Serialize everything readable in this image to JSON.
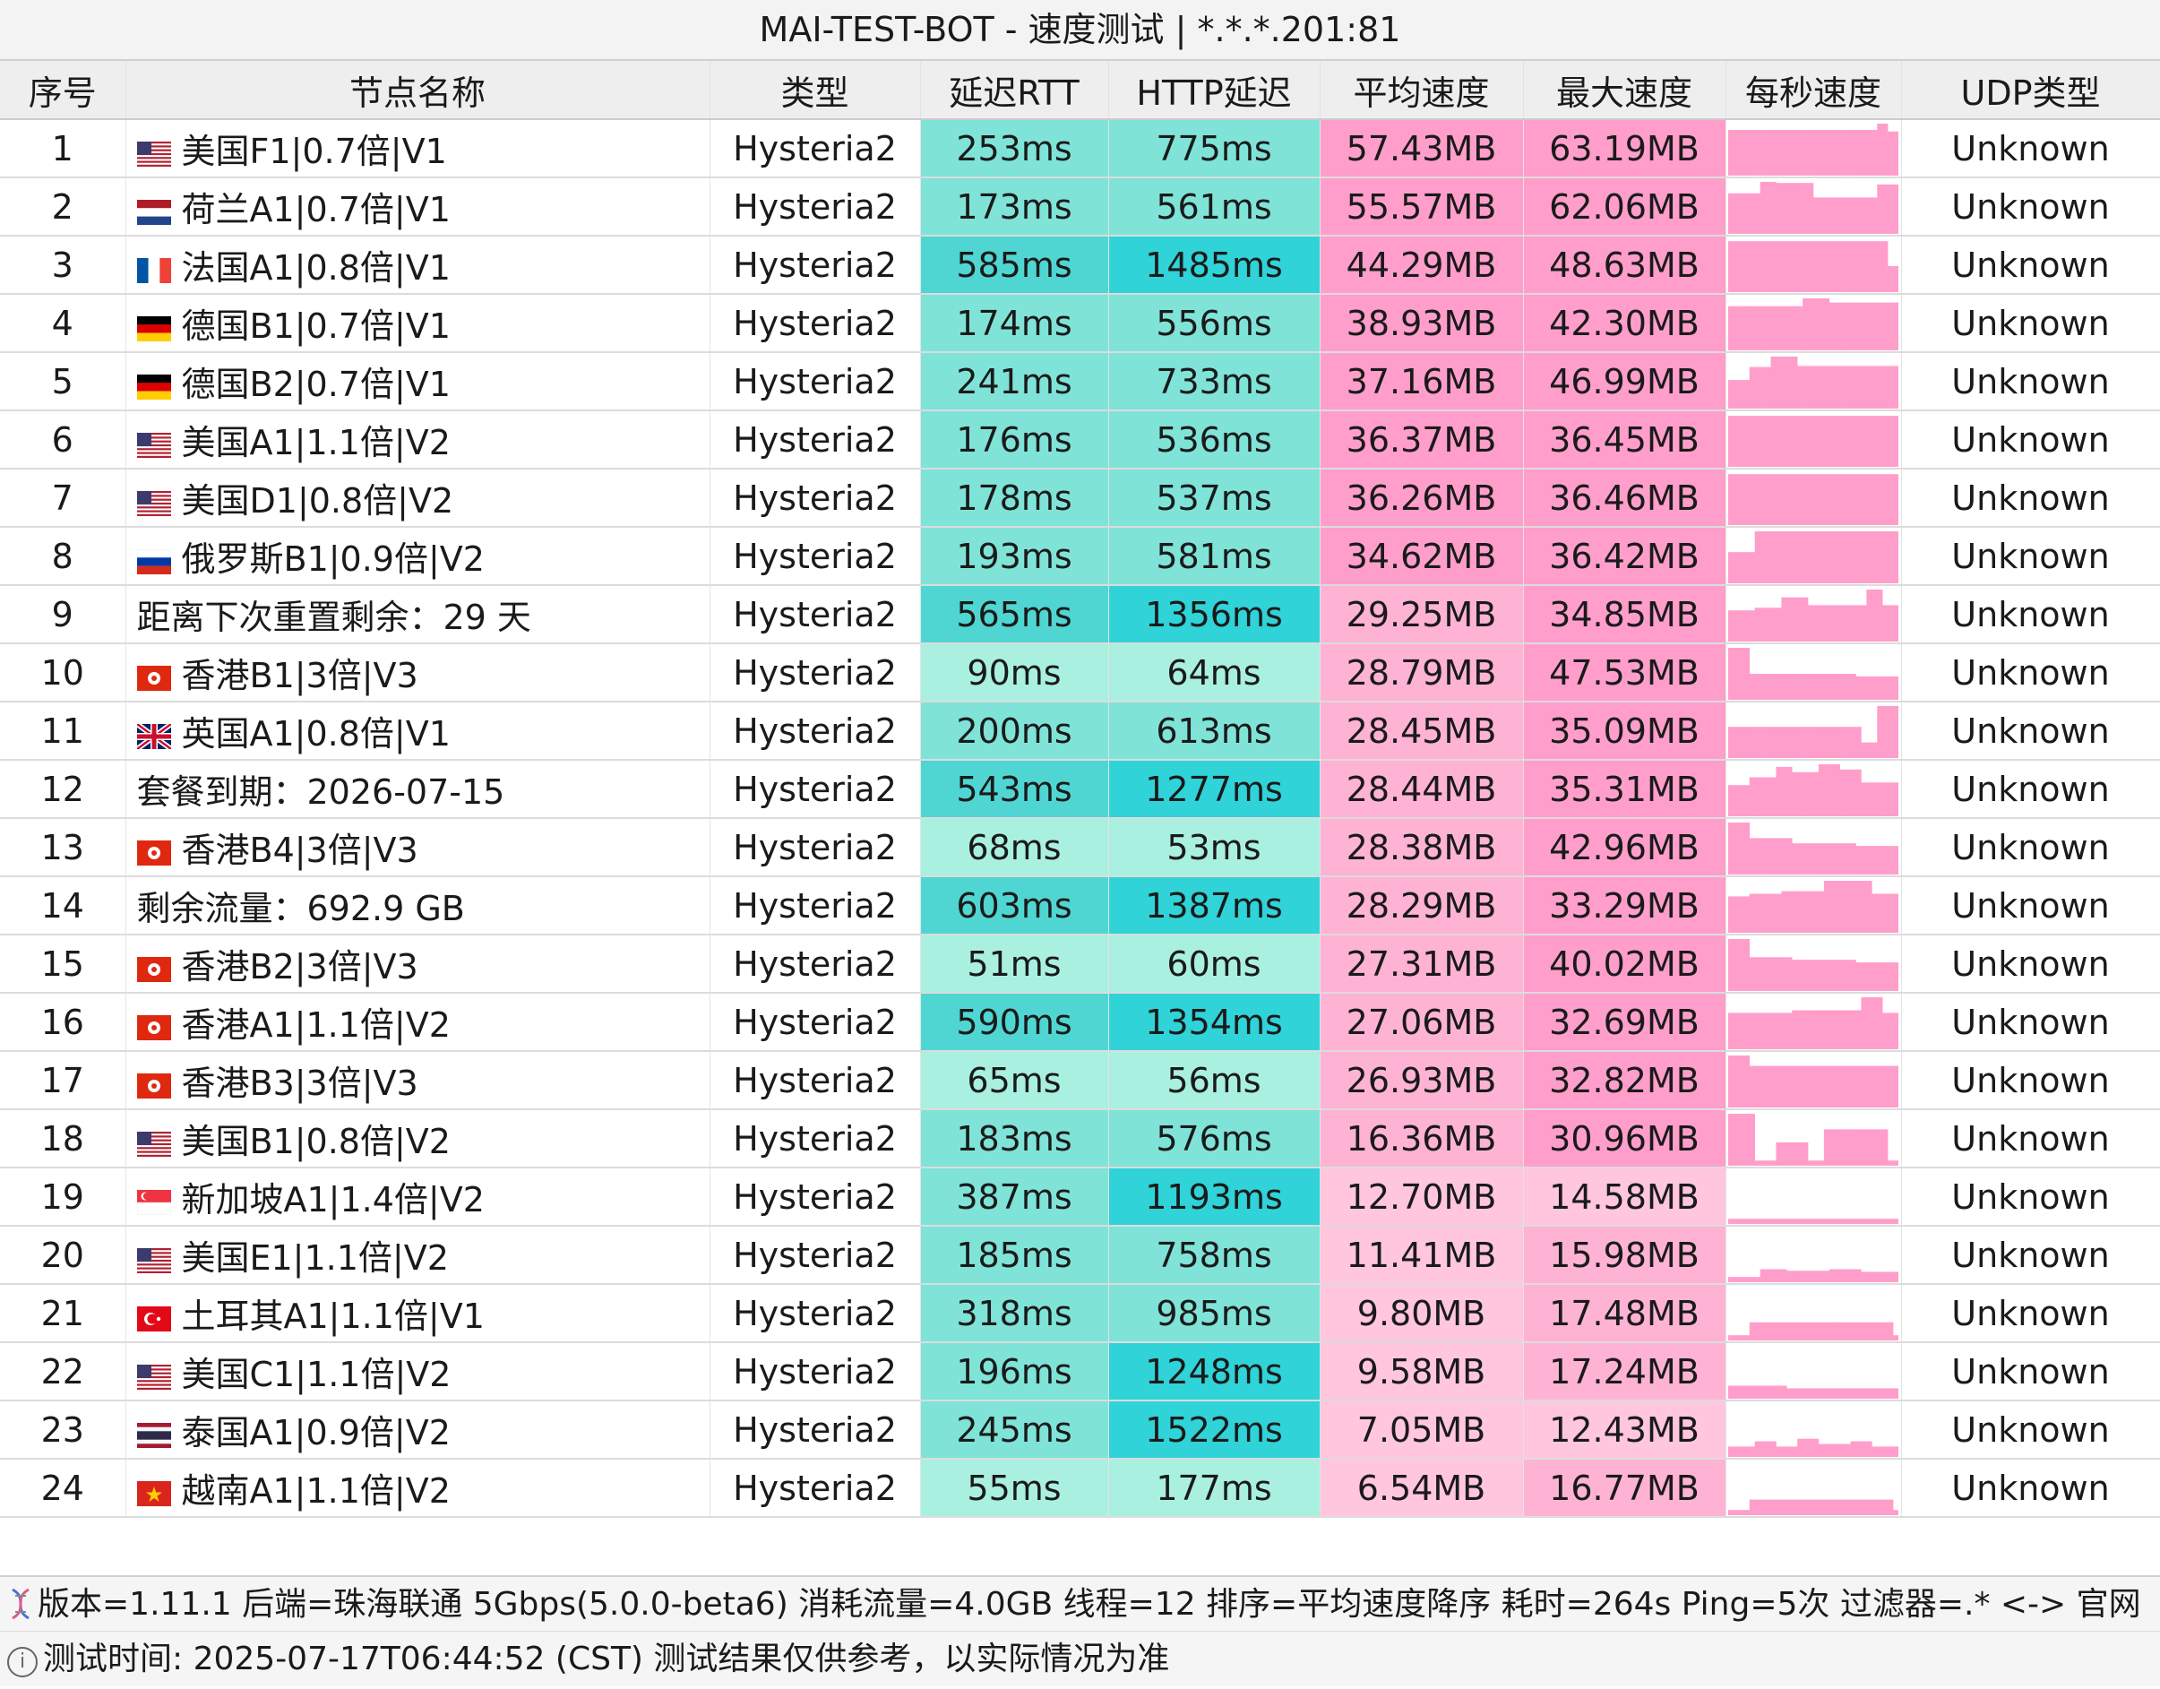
{
  "window": {
    "title": "MAI-TEST-BOT - 速度测试 | *.*.*.201:81"
  },
  "table": {
    "headers": [
      "序号",
      "节点名称",
      "类型",
      "延迟RTT",
      "HTTP延迟",
      "平均速度",
      "最大速度",
      "每秒速度",
      "UDP类型"
    ],
    "rows": [
      {
        "idx": "1",
        "flag": "us",
        "name": "美国F1|0.7倍|V1",
        "type": "Hysteria2",
        "rtt": "253ms",
        "http": "775ms",
        "avg": "57.43MB",
        "max": "63.19MB",
        "udp": "Unknown",
        "spark": [
          0.88,
          0.88,
          0.88,
          0.88,
          0.88,
          0.88,
          0.88,
          0.88,
          0.88,
          0.88,
          0.88,
          0.88,
          0.88,
          0.88,
          0.88,
          0.88,
          0.88,
          0.88,
          0.88,
          0.88,
          0.88,
          0.88,
          0.88,
          0.88,
          0.88,
          0.88,
          0.88,
          0.88,
          1.0,
          1.0,
          0.85,
          0.85
        ]
      },
      {
        "idx": "2",
        "flag": "nl",
        "name": "荷兰A1|0.7倍|V1",
        "type": "Hysteria2",
        "rtt": "173ms",
        "http": "561ms",
        "avg": "55.57MB",
        "max": "62.06MB",
        "udp": "Unknown",
        "spark": [
          0.78,
          0.78,
          0.78,
          0.78,
          0.78,
          0.78,
          1.0,
          1.0,
          1.0,
          0.98,
          0.98,
          0.98,
          0.98,
          0.98,
          0.98,
          0.98,
          0.7,
          0.7,
          0.7,
          0.7,
          0.7,
          0.7,
          0.7,
          0.7,
          0.7,
          0.7,
          0.7,
          0.7,
          0.95,
          0.95,
          0.95,
          0.95
        ]
      },
      {
        "idx": "3",
        "flag": "fr",
        "name": "法国A1|0.8倍|V1",
        "type": "Hysteria2",
        "rtt": "585ms",
        "http": "1485ms",
        "avg": "44.29MB",
        "max": "48.63MB",
        "udp": "Unknown",
        "spark": [
          0.98,
          0.98,
          0.98,
          0.98,
          0.98,
          0.98,
          0.98,
          0.98,
          0.98,
          0.98,
          0.98,
          0.98,
          0.98,
          0.98,
          0.98,
          0.98,
          0.98,
          0.98,
          0.98,
          0.98,
          0.98,
          0.98,
          0.98,
          0.98,
          0.98,
          0.98,
          0.98,
          0.98,
          0.98,
          0.98,
          0.5,
          0.5
        ]
      },
      {
        "idx": "4",
        "flag": "de",
        "name": "德国B1|0.7倍|V1",
        "type": "Hysteria2",
        "rtt": "174ms",
        "http": "556ms",
        "avg": "38.93MB",
        "max": "42.30MB",
        "udp": "Unknown",
        "spark": [
          0.85,
          0.85,
          0.85,
          0.85,
          0.85,
          0.85,
          0.85,
          0.85,
          0.85,
          0.85,
          0.85,
          0.85,
          0.85,
          0.85,
          1.0,
          1.0,
          1.0,
          1.0,
          1.0,
          0.92,
          0.92,
          0.92,
          0.92,
          0.92,
          0.92,
          0.92,
          0.92,
          0.92,
          0.92,
          0.92,
          0.92,
          0.92
        ]
      },
      {
        "idx": "5",
        "flag": "de",
        "name": "德国B2|0.7倍|V1",
        "type": "Hysteria2",
        "rtt": "241ms",
        "http": "733ms",
        "avg": "37.16MB",
        "max": "46.99MB",
        "udp": "Unknown",
        "spark": [
          0.55,
          0.55,
          0.55,
          0.55,
          0.8,
          0.8,
          0.8,
          0.8,
          1.0,
          1.0,
          1.0,
          1.0,
          1.0,
          0.82,
          0.82,
          0.82,
          0.82,
          0.82,
          0.82,
          0.82,
          0.82,
          0.82,
          0.82,
          0.82,
          0.82,
          0.82,
          0.82,
          0.82,
          0.82,
          0.82,
          0.82,
          0.82
        ]
      },
      {
        "idx": "6",
        "flag": "us",
        "name": "美国A1|1.1倍|V2",
        "type": "Hysteria2",
        "rtt": "176ms",
        "http": "536ms",
        "avg": "36.37MB",
        "max": "36.45MB",
        "udp": "Unknown",
        "spark": [
          0.98,
          0.98,
          0.98,
          0.98,
          0.98,
          0.98,
          0.98,
          0.98,
          0.98,
          0.98,
          0.98,
          0.98,
          0.98,
          0.98,
          0.98,
          0.98,
          0.98,
          0.98,
          0.98,
          0.98,
          0.98,
          0.98,
          0.98,
          0.98,
          0.98,
          0.98,
          0.98,
          0.98,
          0.98,
          0.98,
          0.98,
          0.98
        ]
      },
      {
        "idx": "7",
        "flag": "us",
        "name": "美国D1|0.8倍|V2",
        "type": "Hysteria2",
        "rtt": "178ms",
        "http": "537ms",
        "avg": "36.26MB",
        "max": "36.46MB",
        "udp": "Unknown",
        "spark": [
          0.98,
          0.98,
          0.98,
          0.98,
          0.98,
          0.98,
          0.98,
          0.98,
          0.98,
          0.98,
          0.98,
          0.98,
          0.98,
          0.98,
          0.98,
          0.98,
          0.98,
          0.98,
          0.98,
          0.98,
          0.98,
          0.98,
          0.98,
          0.98,
          0.98,
          0.98,
          0.98,
          0.98,
          0.98,
          0.98,
          0.98,
          0.98
        ]
      },
      {
        "idx": "8",
        "flag": "ru",
        "name": "俄罗斯B1|0.9倍|V2",
        "type": "Hysteria2",
        "rtt": "193ms",
        "http": "581ms",
        "avg": "34.62MB",
        "max": "36.42MB",
        "udp": "Unknown",
        "spark": [
          0.6,
          0.6,
          0.6,
          0.6,
          0.6,
          1.0,
          1.0,
          1.0,
          1.0,
          1.0,
          1.0,
          1.0,
          1.0,
          1.0,
          1.0,
          1.0,
          1.0,
          1.0,
          1.0,
          1.0,
          1.0,
          1.0,
          1.0,
          1.0,
          1.0,
          1.0,
          1.0,
          1.0,
          1.0,
          1.0,
          1.0,
          1.0
        ]
      },
      {
        "idx": "9",
        "flag": "",
        "name": "距离下次重置剩余：29 天",
        "type": "Hysteria2",
        "rtt": "565ms",
        "http": "1356ms",
        "avg": "29.25MB",
        "max": "34.85MB",
        "udp": "Unknown",
        "spark": [
          0.6,
          0.6,
          0.6,
          0.6,
          0.6,
          0.65,
          0.65,
          0.65,
          0.65,
          0.65,
          0.85,
          0.85,
          0.85,
          0.85,
          0.85,
          0.7,
          0.7,
          0.7,
          0.7,
          0.7,
          0.7,
          0.7,
          0.7,
          0.7,
          0.7,
          0.7,
          1.0,
          1.0,
          1.0,
          0.7,
          0.7,
          0.7
        ]
      },
      {
        "idx": "10",
        "flag": "hk",
        "name": "香港B1|3倍|V3",
        "type": "Hysteria2",
        "rtt": "90ms",
        "http": "64ms",
        "avg": "28.79MB",
        "max": "47.53MB",
        "udp": "Unknown",
        "spark": [
          1.0,
          1.0,
          1.0,
          1.0,
          0.5,
          0.5,
          0.5,
          0.5,
          0.5,
          0.5,
          0.5,
          0.5,
          0.5,
          0.5,
          0.5,
          0.5,
          0.5,
          0.5,
          0.5,
          0.5,
          0.5,
          0.5,
          0.5,
          0.5,
          0.45,
          0.45,
          0.45,
          0.45,
          0.45,
          0.45,
          0.45,
          0.45
        ]
      },
      {
        "idx": "11",
        "flag": "gb",
        "name": "英国A1|0.8倍|V1",
        "type": "Hysteria2",
        "rtt": "200ms",
        "http": "613ms",
        "avg": "28.45MB",
        "max": "35.09MB",
        "udp": "Unknown",
        "spark": [
          0.6,
          0.6,
          0.6,
          0.6,
          0.6,
          0.6,
          0.6,
          0.6,
          0.6,
          0.6,
          0.6,
          0.6,
          0.6,
          0.6,
          0.6,
          0.6,
          0.6,
          0.6,
          0.6,
          0.6,
          0.6,
          0.6,
          0.6,
          0.6,
          0.6,
          0.3,
          0.3,
          0.3,
          1.0,
          1.0,
          1.0,
          1.0
        ]
      },
      {
        "idx": "12",
        "flag": "",
        "name": "套餐到期：2026-07-15",
        "type": "Hysteria2",
        "rtt": "543ms",
        "http": "1277ms",
        "avg": "28.44MB",
        "max": "35.31MB",
        "udp": "Unknown",
        "spark": [
          0.6,
          0.6,
          0.6,
          0.6,
          0.75,
          0.75,
          0.75,
          0.75,
          0.75,
          0.95,
          0.95,
          0.95,
          0.85,
          0.85,
          0.85,
          0.85,
          0.85,
          1.0,
          1.0,
          1.0,
          1.0,
          0.9,
          0.9,
          0.9,
          0.9,
          0.65,
          0.65,
          0.65,
          0.65,
          0.65,
          0.65,
          0.65
        ]
      },
      {
        "idx": "13",
        "flag": "hk",
        "name": "香港B4|3倍|V3",
        "type": "Hysteria2",
        "rtt": "68ms",
        "http": "53ms",
        "avg": "28.38MB",
        "max": "42.96MB",
        "udp": "Unknown",
        "spark": [
          1.0,
          1.0,
          1.0,
          1.0,
          0.7,
          0.7,
          0.7,
          0.7,
          0.7,
          0.7,
          0.7,
          0.7,
          0.6,
          0.6,
          0.6,
          0.6,
          0.6,
          0.6,
          0.6,
          0.6,
          0.6,
          0.6,
          0.6,
          0.6,
          0.55,
          0.55,
          0.55,
          0.55,
          0.55,
          0.55,
          0.55,
          0.55
        ]
      },
      {
        "idx": "14",
        "flag": "",
        "name": "剩余流量：692.9 GB",
        "type": "Hysteria2",
        "rtt": "603ms",
        "http": "1387ms",
        "avg": "28.29MB",
        "max": "33.29MB",
        "udp": "Unknown",
        "spark": [
          0.7,
          0.7,
          0.7,
          0.7,
          0.75,
          0.75,
          0.75,
          0.75,
          0.75,
          0.75,
          0.8,
          0.8,
          0.8,
          0.8,
          0.8,
          0.8,
          0.8,
          0.8,
          1.0,
          1.0,
          1.0,
          1.0,
          1.0,
          1.0,
          1.0,
          1.0,
          1.0,
          0.75,
          0.75,
          0.75,
          0.75,
          0.75
        ]
      },
      {
        "idx": "15",
        "flag": "hk",
        "name": "香港B2|3倍|V3",
        "type": "Hysteria2",
        "rtt": "51ms",
        "http": "60ms",
        "avg": "27.31MB",
        "max": "40.02MB",
        "udp": "Unknown",
        "spark": [
          1.0,
          1.0,
          1.0,
          1.0,
          0.65,
          0.65,
          0.65,
          0.65,
          0.65,
          0.65,
          0.65,
          0.65,
          0.6,
          0.6,
          0.6,
          0.6,
          0.6,
          0.6,
          0.6,
          0.6,
          0.6,
          0.6,
          0.6,
          0.6,
          0.55,
          0.55,
          0.55,
          0.55,
          0.55,
          0.55,
          0.55,
          0.55
        ]
      },
      {
        "idx": "16",
        "flag": "hk",
        "name": "香港A1|1.1倍|V2",
        "type": "Hysteria2",
        "rtt": "590ms",
        "http": "1354ms",
        "avg": "27.06MB",
        "max": "32.69MB",
        "udp": "Unknown",
        "spark": [
          0.7,
          0.7,
          0.7,
          0.7,
          0.7,
          0.7,
          0.7,
          0.7,
          0.7,
          0.7,
          0.7,
          0.7,
          0.75,
          0.75,
          0.75,
          0.75,
          0.75,
          0.75,
          0.75,
          0.75,
          0.75,
          0.75,
          0.75,
          0.75,
          0.75,
          1.0,
          1.0,
          1.0,
          1.0,
          0.7,
          0.7,
          0.7
        ]
      },
      {
        "idx": "17",
        "flag": "hk",
        "name": "香港B3|3倍|V3",
        "type": "Hysteria2",
        "rtt": "65ms",
        "http": "56ms",
        "avg": "26.93MB",
        "max": "32.82MB",
        "udp": "Unknown",
        "spark": [
          1.0,
          1.0,
          1.0,
          1.0,
          0.8,
          0.8,
          0.8,
          0.8,
          0.8,
          0.8,
          0.8,
          0.8,
          0.8,
          0.8,
          0.8,
          0.8,
          0.8,
          0.8,
          0.8,
          0.8,
          0.8,
          0.8,
          0.8,
          0.8,
          0.8,
          0.8,
          0.8,
          0.8,
          0.8,
          0.8,
          0.8,
          0.8
        ]
      },
      {
        "idx": "18",
        "flag": "us",
        "name": "美国B1|0.8倍|V2",
        "type": "Hysteria2",
        "rtt": "183ms",
        "http": "576ms",
        "avg": "16.36MB",
        "max": "30.96MB",
        "udp": "Unknown",
        "spark": [
          1.0,
          1.0,
          1.0,
          1.0,
          1.0,
          0.1,
          0.1,
          0.1,
          0.1,
          0.45,
          0.45,
          0.45,
          0.45,
          0.45,
          0.45,
          0.1,
          0.1,
          0.1,
          0.7,
          0.7,
          0.7,
          0.7,
          0.7,
          0.7,
          0.7,
          0.7,
          0.7,
          0.7,
          0.7,
          0.7,
          0.1,
          0.1
        ]
      },
      {
        "idx": "19",
        "flag": "sg",
        "name": "新加坡A1|1.4倍|V2",
        "type": "Hysteria2",
        "rtt": "387ms",
        "http": "1193ms",
        "avg": "12.70MB",
        "max": "14.58MB",
        "udp": "Unknown",
        "spark": [
          0.1,
          0.1,
          0.1,
          0.1,
          0.1,
          0.1,
          0.1,
          0.1,
          0.1,
          0.1,
          0.1,
          0.1,
          0.1,
          0.1,
          0.1,
          0.1,
          0.1,
          0.1,
          0.1,
          0.1,
          0.1,
          0.1,
          0.1,
          0.1,
          0.1,
          0.1,
          0.1,
          0.1,
          0.1,
          0.1,
          0.1,
          0.1
        ]
      },
      {
        "idx": "20",
        "flag": "us",
        "name": "美国E1|1.1倍|V2",
        "type": "Hysteria2",
        "rtt": "185ms",
        "http": "758ms",
        "avg": "11.41MB",
        "max": "15.98MB",
        "udp": "Unknown",
        "spark": [
          0.1,
          0.1,
          0.1,
          0.1,
          0.1,
          0.1,
          0.25,
          0.25,
          0.25,
          0.25,
          0.25,
          0.22,
          0.22,
          0.22,
          0.22,
          0.22,
          0.22,
          0.22,
          0.22,
          0.25,
          0.25,
          0.25,
          0.25,
          0.25,
          0.25,
          0.2,
          0.2,
          0.2,
          0.2,
          0.2,
          0.2,
          0.2
        ]
      },
      {
        "idx": "21",
        "flag": "tr",
        "name": "土耳其A1|1.1倍|V1",
        "type": "Hysteria2",
        "rtt": "318ms",
        "http": "985ms",
        "avg": "9.80MB",
        "max": "17.48MB",
        "udp": "Unknown",
        "spark": [
          0.1,
          0.1,
          0.1,
          0.1,
          0.35,
          0.35,
          0.35,
          0.35,
          0.35,
          0.35,
          0.35,
          0.35,
          0.35,
          0.35,
          0.35,
          0.35,
          0.35,
          0.35,
          0.35,
          0.35,
          0.35,
          0.35,
          0.35,
          0.35,
          0.35,
          0.35,
          0.35,
          0.35,
          0.35,
          0.35,
          0.35,
          0.1
        ]
      },
      {
        "idx": "22",
        "flag": "us",
        "name": "美国C1|1.1倍|V2",
        "type": "Hysteria2",
        "rtt": "196ms",
        "http": "1248ms",
        "avg": "9.58MB",
        "max": "17.24MB",
        "udp": "Unknown",
        "spark": [
          0.25,
          0.25,
          0.25,
          0.25,
          0.25,
          0.25,
          0.25,
          0.25,
          0.25,
          0.25,
          0.25,
          0.2,
          0.2,
          0.2,
          0.2,
          0.2,
          0.2,
          0.2,
          0.2,
          0.2,
          0.2,
          0.2,
          0.2,
          0.2,
          0.2,
          0.2,
          0.2,
          0.2,
          0.2,
          0.2,
          0.2,
          0.2
        ]
      },
      {
        "idx": "23",
        "flag": "th",
        "name": "泰国A1|0.9倍|V2",
        "type": "Hysteria2",
        "rtt": "245ms",
        "http": "1522ms",
        "avg": "7.05MB",
        "max": "12.43MB",
        "udp": "Unknown",
        "spark": [
          0.2,
          0.2,
          0.2,
          0.2,
          0.2,
          0.3,
          0.3,
          0.3,
          0.3,
          0.2,
          0.2,
          0.2,
          0.2,
          0.35,
          0.35,
          0.35,
          0.35,
          0.25,
          0.25,
          0.25,
          0.25,
          0.25,
          0.25,
          0.3,
          0.3,
          0.3,
          0.3,
          0.2,
          0.2,
          0.2,
          0.2,
          0.2
        ]
      },
      {
        "idx": "24",
        "flag": "vn",
        "name": "越南A1|1.1倍|V2",
        "type": "Hysteria2",
        "rtt": "55ms",
        "http": "177ms",
        "avg": "6.54MB",
        "max": "16.77MB",
        "udp": "Unknown",
        "spark": [
          0.1,
          0.1,
          0.1,
          0.1,
          0.3,
          0.3,
          0.3,
          0.3,
          0.3,
          0.3,
          0.3,
          0.3,
          0.3,
          0.3,
          0.3,
          0.3,
          0.3,
          0.3,
          0.3,
          0.3,
          0.3,
          0.3,
          0.3,
          0.3,
          0.3,
          0.3,
          0.3,
          0.3,
          0.3,
          0.3,
          0.3,
          0.1
        ]
      }
    ]
  },
  "footer": {
    "line1": "版本=1.11.1  后端=珠海联通 5Gbps(5.0.0-beta6) 消耗流量=4.0GB  线程=12  排序=平均速度降序  耗时=264s  Ping=5次  过滤器=.* <-> 官网",
    "line2": "测试时间: 2025-07-17T06:44:52 (CST)  测试结果仅供参考，以实际情况为准"
  },
  "icons": {
    "footer1": "dna-icon",
    "footer2": "info-icon"
  },
  "colors": {
    "rtt_low": "#a9f0e0",
    "rtt_mid": "#7fe3d8",
    "rtt_high": "#4fd6d2",
    "http_low": "#a9f0e0",
    "http_mid": "#7fe3d8",
    "http_high": "#2fd3d8",
    "avg_high": "#ff9ecb",
    "avg_mid": "#ffb3d4",
    "avg_low": "#ffc6dd",
    "max_high": "#ff9ecb",
    "max_mid": "#ffb3d4",
    "max_low": "#ffc6dd",
    "spark": "#ff9ecb"
  }
}
